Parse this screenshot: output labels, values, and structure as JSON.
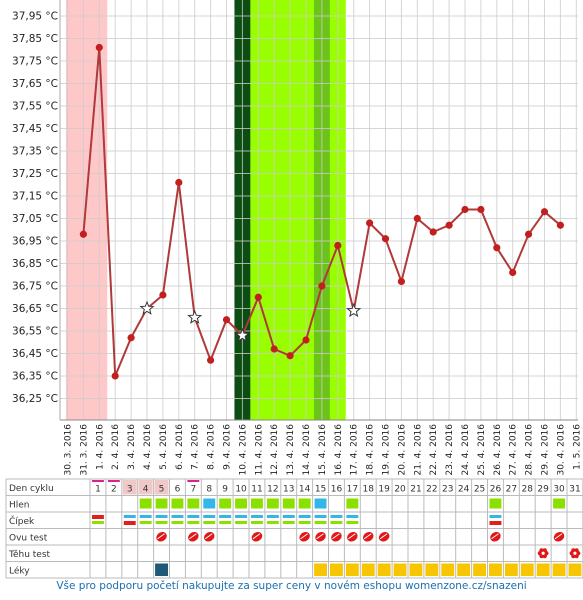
{
  "chart_data": {
    "type": "line",
    "ylim": [
      36.15,
      38.02
    ],
    "y_ticks": [
      "37,95 °C",
      "37,85 °C",
      "37,75 °C",
      "37,65 °C",
      "37,55 °C",
      "37,45 °C",
      "37,35 °C",
      "37,25 °C",
      "37,15 °C",
      "37,05 °C",
      "36,95 °C",
      "36,85 °C",
      "36,75 °C",
      "36,65 °C",
      "36,55 °C",
      "36,45 °C",
      "36,35 °C",
      "36,25 °C"
    ],
    "y_tick_values": [
      37.95,
      37.85,
      37.75,
      37.65,
      37.55,
      37.45,
      37.35,
      37.25,
      37.15,
      37.05,
      36.95,
      36.85,
      36.75,
      36.65,
      36.55,
      36.45,
      36.35,
      36.25
    ],
    "x": [
      "30. 3. 2016",
      "31. 3. 2016",
      "1. 4. 2016",
      "2. 4. 2016",
      "3. 4. 2016",
      "4. 4. 2016",
      "5. 4. 2016",
      "6. 4. 2016",
      "7. 4. 2016",
      "8. 4. 2016",
      "9. 4. 2016",
      "10. 4. 2016",
      "11. 4. 2016",
      "12. 4. 2016",
      "13. 4. 2016",
      "14. 4. 2016",
      "15. 4. 2016",
      "16. 4. 2016",
      "17. 4. 2016",
      "18. 4. 2016",
      "19. 4. 2016",
      "20. 4. 2016",
      "21. 4. 2016",
      "22. 4. 2016",
      "23. 4. 2016",
      "24. 4. 2016",
      "25. 4. 2016",
      "26. 4. 2016",
      "27. 4. 2016",
      "28. 4. 2016",
      "29. 4. 2016",
      "30. 4. 2016",
      "1. 5. 2016"
    ],
    "series": [
      {
        "values": [
          null,
          36.98,
          37.81,
          36.35,
          36.52,
          36.65,
          36.71,
          37.21,
          36.61,
          36.42,
          36.6,
          36.53,
          36.7,
          36.47,
          36.44,
          36.51,
          36.75,
          36.93,
          36.64,
          37.03,
          36.96,
          36.77,
          37.05,
          36.99,
          37.02,
          37.09,
          37.09,
          36.92,
          36.81,
          36.98,
          37.08,
          37.02,
          null
        ],
        "point_markers": [
          "",
          "dot",
          "dot",
          "dot",
          "dot",
          "star",
          "dot",
          "dot",
          "star",
          "dot",
          "dot",
          "star",
          "dot",
          "dot",
          "dot",
          "dot",
          "dot",
          "dot",
          "star",
          "dot",
          "dot",
          "dot",
          "dot",
          "dot",
          "dot",
          "dot",
          "dot",
          "dot",
          "dot",
          "dot",
          "dot",
          "dot",
          ""
        ]
      }
    ],
    "bands": [
      {
        "kind": "period",
        "from_day": 1,
        "to_day": 2,
        "color": "#ffc8c8"
      },
      {
        "kind": "fertile",
        "from_day": 12,
        "to_day": 17,
        "color": "#99ff00"
      },
      {
        "kind": "ovulation",
        "day": 11,
        "color": "#0b4d12"
      },
      {
        "kind": "fertile-peak",
        "day": 16,
        "color": "#6cc41a"
      }
    ],
    "line_color": "#b0393b",
    "dot_color": "#c21f1f",
    "grid": true
  },
  "table": {
    "row_labels": [
      "Den cyklu",
      "Hlen",
      "Čípek",
      "Ovu test",
      "Těhu test",
      "Léky"
    ],
    "days": [
      "1",
      "2",
      "3",
      "4",
      "5",
      "6",
      "7",
      "8",
      "9",
      "10",
      "11",
      "12",
      "13",
      "14",
      "15",
      "16",
      "17",
      "18",
      "19",
      "20",
      "21",
      "22",
      "23",
      "24",
      "25",
      "26",
      "27",
      "28",
      "29",
      "30",
      "31"
    ],
    "day_color": [
      "pink",
      "pink",
      "lightpink",
      "lightpink",
      "lightpink",
      "",
      "pink",
      "",
      "",
      "",
      "",
      "",
      "",
      "",
      "",
      "",
      "",
      "",
      "",
      "",
      "",
      "",
      "",
      "",
      "",
      "",
      "",
      "",
      "",
      "",
      ""
    ],
    "hlen": [
      "",
      "",
      "",
      "g",
      "g",
      "g",
      "g",
      "b",
      "g",
      "g",
      "g",
      "g",
      "g",
      "g",
      "b",
      "",
      "g",
      "",
      "",
      "",
      "",
      "",
      "",
      "",
      "",
      "g",
      "",
      "",
      "",
      "g",
      ""
    ],
    "cipek": [
      "r",
      "",
      "rb",
      "b",
      "b",
      "b",
      "b",
      "b",
      "b",
      "b",
      "b",
      "b",
      "b",
      "b",
      "b",
      "b",
      "b",
      "",
      "",
      "",
      "",
      "",
      "",
      "",
      "",
      "rb",
      "",
      "",
      "",
      "",
      ""
    ],
    "ovu": [
      "",
      "",
      "",
      "",
      "x",
      "",
      "x",
      "x",
      "",
      "",
      "x",
      "",
      "",
      "x",
      "x",
      "x",
      "x",
      "x",
      "x",
      "",
      "",
      "",
      "",
      "",
      "",
      "x",
      "",
      "",
      "",
      "x",
      ""
    ],
    "tehu": [
      "",
      "",
      "",
      "",
      "",
      "",
      "",
      "",
      "",
      "",
      "",
      "",
      "",
      "",
      "",
      "",
      "",
      "",
      "",
      "",
      "",
      "",
      "",
      "",
      "",
      "",
      "",
      "",
      "x",
      "",
      "x"
    ],
    "leky": [
      "",
      "",
      "",
      "",
      "d",
      "",
      "",
      "",
      "",
      "",
      "",
      "",
      "",
      "",
      "y",
      "y",
      "y",
      "y",
      "y",
      "y",
      "y",
      "y",
      "y",
      "y",
      "y",
      "y",
      "y",
      "y",
      "y",
      "y",
      "y"
    ]
  },
  "colors": {
    "grid": "#cccccc",
    "hlen_green": "#8be000",
    "hlen_blue": "#33b6e8",
    "cipek_blue": "#33b6e8",
    "cipek_red": "#e02020",
    "ovu_red": "#e01818",
    "tehu_red": "#e01818",
    "leky_yellow": "#f7c600",
    "leky_dark": "#1e5a78",
    "pink": "#e0208c",
    "lightpink": "#f0c8c8"
  },
  "footer": "Vše pro podporu početí nakupujte za super ceny v novém eshopu womenzone.cz/snazeni"
}
